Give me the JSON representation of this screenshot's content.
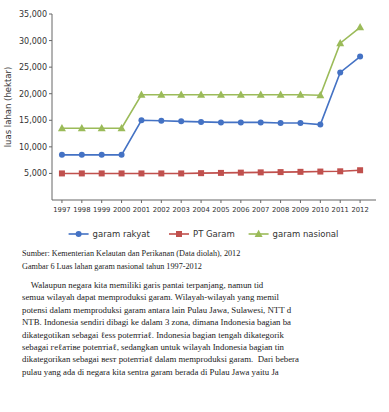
{
  "chart_data": {
    "type": "line",
    "y_label": "luas lahan (hektar)",
    "x": [
      1997,
      1998,
      1999,
      2000,
      2001,
      2002,
      2003,
      2004,
      2005,
      2006,
      2007,
      2008,
      2009,
      2010,
      2011,
      2012
    ],
    "series": [
      {
        "name": "garam rakyat",
        "color": "#4472C4",
        "marker": "circle",
        "values": [
          8500,
          8500,
          8500,
          8500,
          15000,
          14900,
          14800,
          14700,
          14600,
          14600,
          14600,
          14500,
          14500,
          14200,
          24000,
          27000
        ]
      },
      {
        "name": "PT Garam",
        "color": "#C0504D",
        "marker": "square",
        "values": [
          5000,
          5000,
          5000,
          5000,
          5000,
          5000,
          5000,
          5050,
          5100,
          5150,
          5200,
          5250,
          5300,
          5350,
          5400,
          5600
        ]
      },
      {
        "name": "garam nasional",
        "color": "#9BBB59",
        "marker": "triangle",
        "values": [
          13500,
          13500,
          13500,
          13500,
          19800,
          19800,
          19800,
          19800,
          19800,
          19800,
          19800,
          19800,
          19800,
          19700,
          29500,
          32500
        ]
      }
    ],
    "xlim": [
      1996.5,
      2012.8
    ],
    "xticks": [
      1997,
      1998,
      1999,
      2000,
      2001,
      2002,
      2003,
      2004,
      2005,
      2006,
      2007,
      2008,
      2009,
      2010,
      2011,
      2012
    ],
    "ylim": [
      0,
      35000
    ],
    "yticks": [
      {
        "value": 5000,
        "label": "5,000"
      },
      {
        "value": 10000,
        "label": "10,000"
      },
      {
        "value": 15000,
        "label": "15,000"
      },
      {
        "value": 20000,
        "label": "20,000"
      },
      {
        "value": 25000,
        "label": "25,000"
      },
      {
        "value": 30000,
        "label": "30,000"
      },
      {
        "value": 35000,
        "label": "35,000"
      }
    ],
    "grid": false,
    "legend": "bottom",
    "annotations": [
      "Sumber: Kementerian Kelautan dan Perikanan (Data diolah), 2012",
      "Gambar 6 Luas lahan garam nasional tahun 1997-2012",
      "    Walaupun negara kita memiliki garis pantai terpanjang, namun tid",
      "semua wilayah dapat memproduksi garam. Wilayah-wilayah yang memil",
      "potensi dalam memproduksi garam antara lain Pulau Jawa, Sulawesi, NTT d",
      "NTB. Indonesia sendiri dibagi ke dalam 3 zona, dimana Indonesia bagian ba",
      "dikategotikan sebagai ℓеѕѕ роtеnтіаℓ. Indonesia bagian tengah dikategorik",
      "sebagai гeℓaтіве роtеnтіаℓ, sedangkan untuk wilayah Indonesia bagian tin",
      "dikategorikan sebagai вeѕт роtеnтіаℓ dalam memproduksi garam.  Dari bebera",
      "pulau yang ada di negara kita sentra garam berada di Pulau Jawa yaitu Ja"
    ]
  }
}
